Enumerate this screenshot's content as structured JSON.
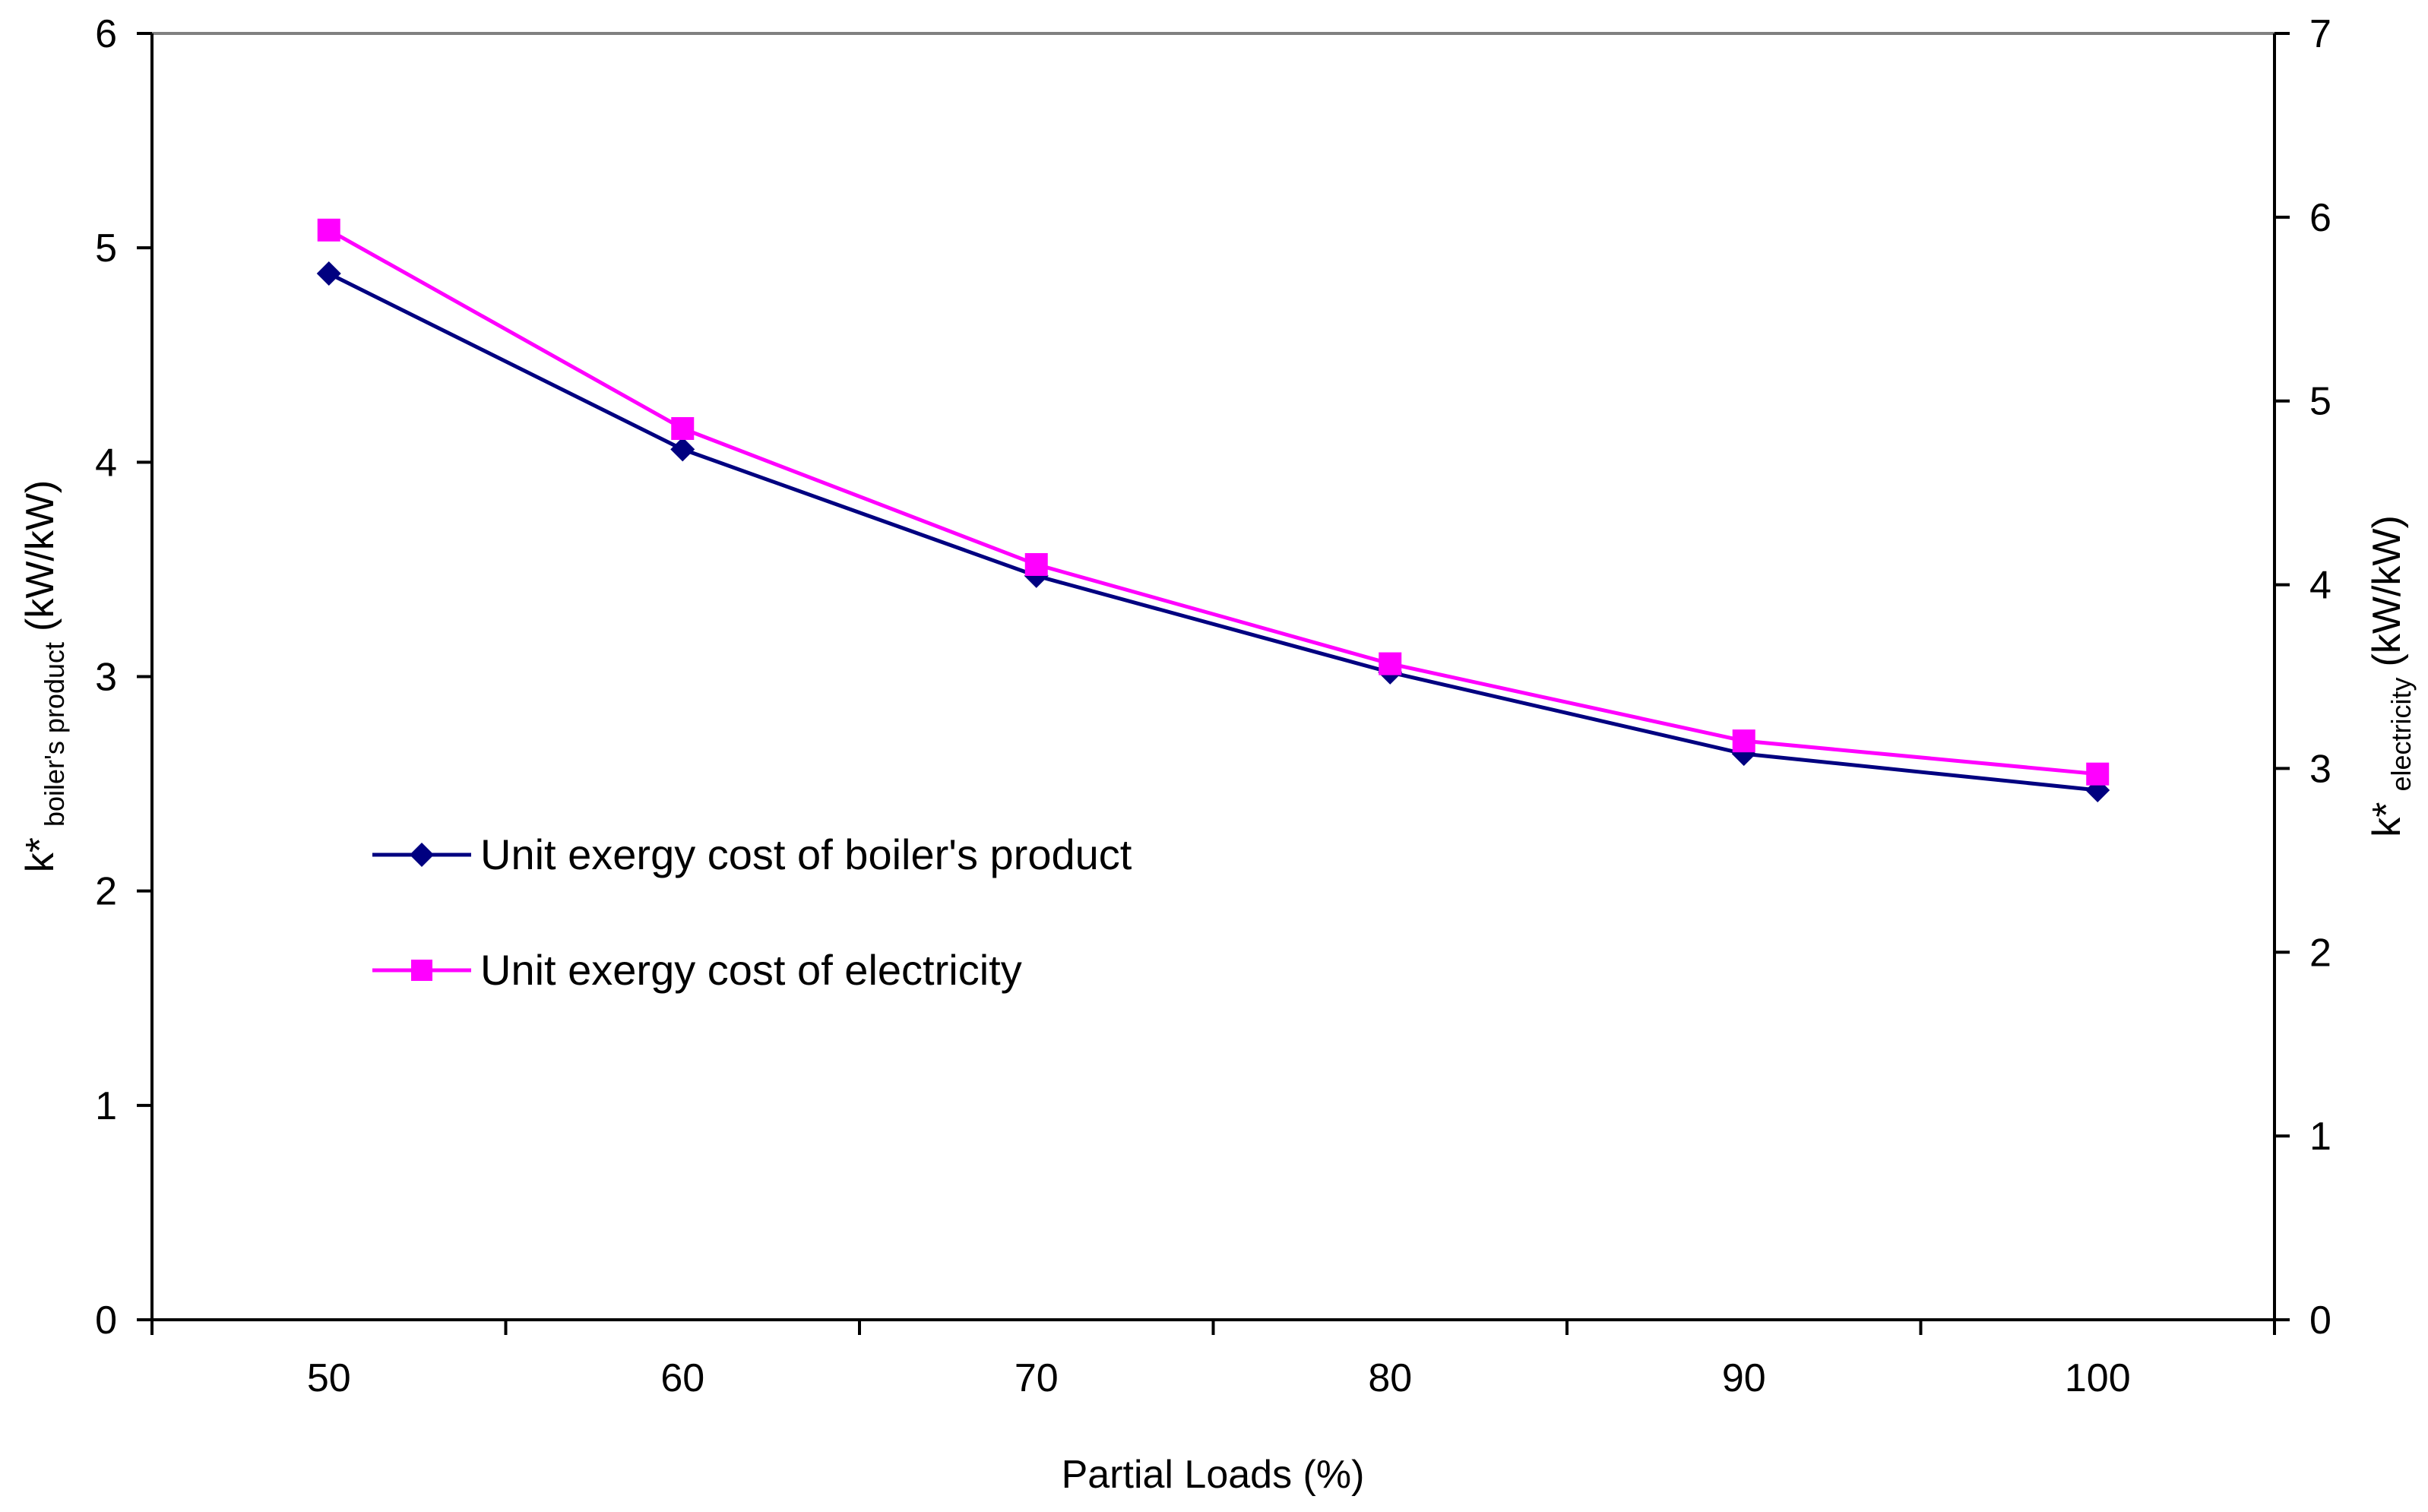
{
  "chart_data": {
    "type": "line",
    "xlabel": "Partial Loads  (%)",
    "x_categories": [
      "50",
      "60",
      "70",
      "80",
      "90",
      "100"
    ],
    "x": [
      50,
      60,
      70,
      80,
      90,
      100
    ],
    "xlim": [
      45,
      105
    ],
    "y_left": {
      "label_main": "k*",
      "label_sub": "boiler's product",
      "label_unit": "(kW/kW)",
      "ylim": [
        0,
        6
      ],
      "ticks": [
        "0",
        "1",
        "2",
        "3",
        "4",
        "5",
        "6"
      ]
    },
    "y_right": {
      "label_main": "k*",
      "label_sub": "electricity",
      "label_unit": "(kW/kW)",
      "ylim": [
        0,
        7
      ],
      "ticks": [
        "0",
        "1",
        "2",
        "3",
        "4",
        "5",
        "6",
        "7"
      ]
    },
    "series": [
      {
        "name": "Unit exergy cost of boiler's product",
        "axis": "left",
        "color": "#000080",
        "marker": "diamond",
        "values": [
          4.88,
          4.06,
          3.47,
          3.02,
          2.64,
          2.47
        ]
      },
      {
        "name": "Unit exergy cost of electricity",
        "axis": "right",
        "color": "#FF00FF",
        "marker": "square",
        "values": [
          5.93,
          4.85,
          4.11,
          3.57,
          3.15,
          2.97
        ]
      }
    ],
    "legend_position": "center-left",
    "grid": false
  }
}
